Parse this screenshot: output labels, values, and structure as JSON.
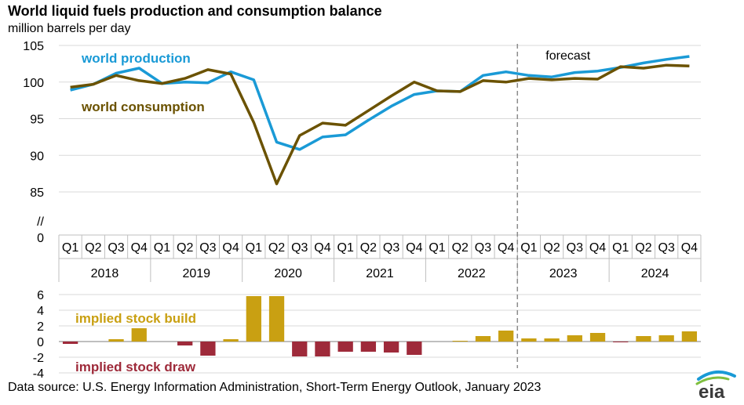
{
  "header": {
    "title": "World liquid fuels production and consumption balance",
    "subtitle": "million barrels per day"
  },
  "footer": {
    "source": "Data source: U.S. Energy Information Administration, Short-Term Energy Outlook, January 2023",
    "logo_text": "eia"
  },
  "colors": {
    "production": "#1a9ad6",
    "consumption": "#6b5200",
    "build": "#c9a012",
    "draw": "#9e2a3a",
    "forecast_line": "#8c8c8c",
    "grid": "#d9d9d9"
  },
  "chart_data": [
    {
      "type": "line",
      "quarters": [
        "Q1",
        "Q2",
        "Q3",
        "Q4",
        "Q1",
        "Q2",
        "Q3",
        "Q4",
        "Q1",
        "Q2",
        "Q3",
        "Q4",
        "Q1",
        "Q2",
        "Q3",
        "Q4",
        "Q1",
        "Q2",
        "Q3",
        "Q4",
        "Q1",
        "Q2",
        "Q3",
        "Q4",
        "Q1",
        "Q2",
        "Q3",
        "Q4"
      ],
      "years": [
        "2018",
        "2019",
        "2020",
        "2021",
        "2022",
        "2023",
        "2024"
      ],
      "series": [
        {
          "name": "world production",
          "values": [
            98.9,
            99.7,
            101.2,
            101.9,
            99.8,
            100.0,
            99.9,
            101.4,
            100.3,
            91.8,
            90.8,
            92.5,
            92.8,
            94.8,
            96.7,
            98.3,
            98.8,
            98.7,
            100.9,
            101.4,
            100.9,
            100.7,
            101.3,
            101.5,
            102.0,
            102.6,
            103.1,
            103.5
          ]
        },
        {
          "name": "world consumption",
          "values": [
            99.3,
            99.7,
            100.9,
            100.2,
            99.8,
            100.5,
            101.7,
            101.1,
            94.5,
            86.1,
            92.7,
            94.4,
            94.1,
            96.1,
            98.1,
            100.0,
            98.8,
            98.7,
            100.2,
            100.0,
            100.5,
            100.3,
            100.5,
            100.4,
            102.1,
            101.9,
            102.3,
            102.2
          ]
        }
      ],
      "ylim": [
        85,
        105
      ],
      "yticks": [
        85,
        90,
        95,
        100,
        105
      ],
      "axis_break_labels": [
        "//",
        "0"
      ],
      "forecast_label": "forecast",
      "forecast_start_index": 20
    },
    {
      "type": "bar",
      "quarters_ref": "same as above",
      "values": [
        -0.3,
        0.0,
        0.3,
        1.7,
        0.0,
        -0.5,
        -1.8,
        0.3,
        5.8,
        5.8,
        -1.9,
        -1.9,
        -1.3,
        -1.3,
        -1.4,
        -1.7,
        0.0,
        0.1,
        0.7,
        1.4,
        0.4,
        0.4,
        0.8,
        1.1,
        -0.1,
        0.7,
        0.8,
        1.3
      ],
      "ylim": [
        -4,
        6
      ],
      "yticks": [
        -4,
        -2,
        0,
        2,
        4,
        6
      ],
      "labels": {
        "build": "implied stock  build",
        "draw": "implied stock draw"
      }
    }
  ]
}
